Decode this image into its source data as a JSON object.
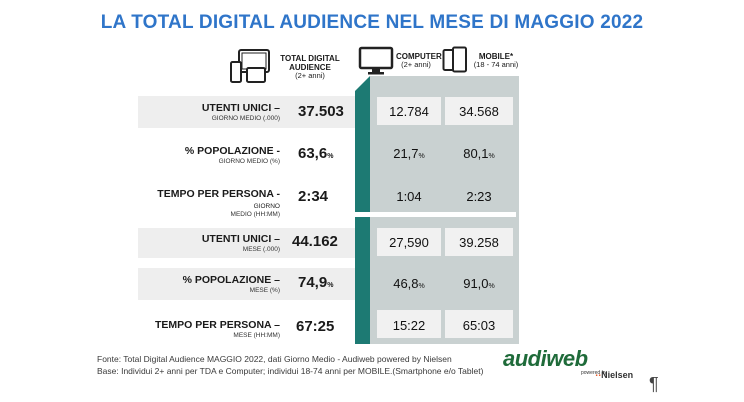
{
  "title": "LA TOTAL DIGITAL AUDIENCE NEL MESE DI MAGGIO 2022",
  "headers": {
    "tda": {
      "line1": "TOTAL DIGITAL",
      "line2": "AUDIENCE",
      "sub": "(2+ anni)"
    },
    "computer": {
      "line1": "COMPUTER",
      "sub": "(2+ anni)"
    },
    "mobile": {
      "line1": "MOBILE*",
      "sub": "(18 - 74 anni)"
    }
  },
  "rows": [
    {
      "label": "UTENTI UNICI –",
      "sub": "GIORNO MEDIO (.000)",
      "tda": "37.503",
      "tda_unit": "",
      "computer": "12.784",
      "computer_unit": "",
      "mobile": "34.568",
      "mobile_unit": ""
    },
    {
      "label": "% POPOLAZIONE -",
      "sub": "GIORNO MEDIO (%)",
      "tda": "63,6",
      "tda_unit": "%",
      "computer": "21,7",
      "computer_unit": "%",
      "mobile": "80,1",
      "mobile_unit": "%"
    },
    {
      "label": "TEMPO PER PERSONA -",
      "label_inline_sub": " GIORNO",
      "sub": "MEDIO (HH:MM)",
      "tda": "2:34",
      "tda_unit": "",
      "computer": "1:04",
      "computer_unit": "",
      "mobile": "2:23",
      "mobile_unit": ""
    },
    {
      "label": "UTENTI UNICI –",
      "sub": "MESE (.000)",
      "tda": "44.162",
      "tda_unit": "",
      "computer": "27,590",
      "computer_unit": "",
      "mobile": "39.258",
      "mobile_unit": ""
    },
    {
      "label": "% POPOLAZIONE –",
      "sub": "MESE (%)",
      "tda": "74,9",
      "tda_unit": "%",
      "computer": "46,8",
      "computer_unit": "%",
      "mobile": "91,0",
      "mobile_unit": "%"
    },
    {
      "label": "TEMPO PER PERSONA –",
      "sub": "MESE (HH:MM)",
      "tda": "67:25",
      "tda_unit": "",
      "computer": "15:22",
      "computer_unit": "",
      "mobile": "65:03",
      "mobile_unit": ""
    }
  ],
  "footer": {
    "source": "Fonte: Total Digital Audience MAGGIO 2022, dati Giorno Medio - Audiweb powered by Nielsen",
    "base": "Base:  Individui 2+ anni per TDA e Computer; individui 18-74 anni per MOBILE.(Smartphone e/o Tablet)"
  },
  "logo": {
    "brand": "audiweb",
    "powered": "powered by",
    "partner": "Nielsen"
  },
  "pilcrow": "¶",
  "colors": {
    "title": "#2f75c9",
    "teal": "#1d7a73",
    "panel": "#c9d1d1",
    "logo_green": "#1f6b3a"
  }
}
